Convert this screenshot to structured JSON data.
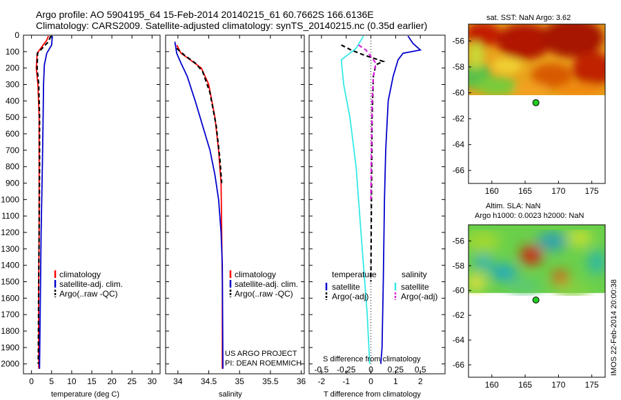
{
  "title": {
    "line1": "Argo profile: AO 5904195_64 15-Feb-2014 20140215_61 60.7662S 166.6136E",
    "line2": "Climatology: CARS2009. Satellite-adjusted climatology: synTS_20140215.nc (0.35d earlier)"
  },
  "colors": {
    "climatology": "#ff0000",
    "satellite": "#0000cc",
    "argo": "#000000",
    "satellite_salinity": "#33e8e8",
    "argo_salinity": "#e020e0"
  },
  "depth_axis": {
    "ticks": [
      0,
      100,
      200,
      300,
      400,
      500,
      600,
      700,
      800,
      900,
      1000,
      1100,
      1200,
      1300,
      1400,
      1500,
      1600,
      1700,
      1800,
      1900,
      2000
    ],
    "range": [
      0,
      2060
    ],
    "reversed": true
  },
  "chart_data": [
    {
      "type": "line",
      "xlabel": "temperature (deg C)",
      "xticks": [
        0,
        5,
        10,
        15,
        20,
        25,
        30
      ],
      "xlim": [
        -2,
        32
      ],
      "legend": [
        "climatology",
        "satellite-adj. clim.",
        "Argo(..raw -QC)"
      ],
      "series": [
        {
          "name": "climatology",
          "style": "solid",
          "color": "#ff0000",
          "points": [
            [
              4.2,
              5
            ],
            [
              3.8,
              30
            ],
            [
              1.4,
              110
            ],
            [
              1.2,
              200
            ],
            [
              1.6,
              300
            ],
            [
              1.9,
              500
            ],
            [
              1.9,
              800
            ],
            [
              1.9,
              1200
            ],
            [
              1.8,
              1500
            ],
            [
              1.8,
              2030
            ]
          ]
        },
        {
          "name": "satellite-adj. clim.",
          "style": "solid",
          "color": "#0000cc",
          "points": [
            [
              5.2,
              5
            ],
            [
              5.0,
              60
            ],
            [
              3.8,
              110
            ],
            [
              3.2,
              180
            ],
            [
              3.0,
              300
            ],
            [
              2.9,
              500
            ],
            [
              2.7,
              800
            ],
            [
              2.4,
              1200
            ],
            [
              2.2,
              1600
            ],
            [
              2.0,
              2030
            ]
          ]
        },
        {
          "name": "Argo(..raw -QC)",
          "style": "dashed",
          "color": "#000000",
          "points": [
            [
              4.8,
              5
            ],
            [
              4.2,
              40
            ],
            [
              1.5,
              110
            ],
            [
              1.4,
              200
            ],
            [
              1.8,
              300
            ],
            [
              2.0,
              500
            ],
            [
              2.0,
              800
            ],
            [
              1.9,
              1200
            ],
            [
              1.8,
              1500
            ],
            [
              1.7,
              2000
            ]
          ]
        }
      ]
    },
    {
      "type": "line",
      "xlabel": "salinity",
      "xticks": [
        34,
        34.5,
        35,
        35.5,
        36
      ],
      "xticklabels": [
        "34",
        "34.5",
        "35",
        "35.5",
        "36"
      ],
      "xlim": [
        33.8,
        36.05
      ],
      "legend": [
        "climatology",
        "satellite-adj. clim.",
        "Argo(..raw -QC)"
      ],
      "annotation": [
        "US ARGO PROJECT",
        "PI: DEAN ROEMMICH"
      ],
      "series": [
        {
          "name": "climatology",
          "style": "solid",
          "color": "#ff0000",
          "points": [
            [
              33.98,
              60
            ],
            [
              34.05,
              110
            ],
            [
              34.2,
              150
            ],
            [
              34.38,
              200
            ],
            [
              34.5,
              300
            ],
            [
              34.6,
              500
            ],
            [
              34.66,
              700
            ],
            [
              34.7,
              900
            ],
            [
              34.71,
              1200
            ],
            [
              34.72,
              1500
            ],
            [
              34.72,
              2030
            ]
          ]
        },
        {
          "name": "satellite-adj. clim.",
          "style": "solid",
          "color": "#0000cc",
          "points": [
            [
              33.95,
              40
            ],
            [
              33.98,
              110
            ],
            [
              34.05,
              170
            ],
            [
              34.15,
              250
            ],
            [
              34.28,
              400
            ],
            [
              34.4,
              550
            ],
            [
              34.52,
              700
            ],
            [
              34.6,
              850
            ],
            [
              34.66,
              1000
            ],
            [
              34.7,
              1200
            ],
            [
              34.72,
              1400
            ],
            [
              34.73,
              2030
            ]
          ]
        },
        {
          "name": "Argo(..raw -QC)",
          "style": "dashed",
          "color": "#000000",
          "points": [
            [
              33.98,
              80
            ],
            [
              34.1,
              120
            ],
            [
              34.28,
              170
            ],
            [
              34.4,
              220
            ],
            [
              34.52,
              350
            ],
            [
              34.62,
              550
            ],
            [
              34.68,
              750
            ],
            [
              34.71,
              900
            ]
          ]
        }
      ]
    },
    {
      "type": "line",
      "xlabel": "T difference from climatology",
      "xticks": [
        -2,
        -1,
        0,
        1,
        2
      ],
      "xlim": [
        -2.5,
        3.0
      ],
      "top_axis_label": "S difference from climatology",
      "top_ticks": [
        -0.5,
        -0.25,
        0,
        0.25,
        0.5
      ],
      "top_ticklabels": [
        "-0.5",
        "-0.25",
        "0",
        "0.25",
        "0.5"
      ],
      "top_xlim": [
        -0.625,
        0.75
      ],
      "legend_titles": [
        "temperature",
        "salinity"
      ],
      "legend": [
        "satellite",
        "Argo(-adj)",
        "satellite",
        "Argo(-adj)"
      ],
      "series": [
        {
          "name": "satellite",
          "group": "temperature",
          "style": "solid",
          "color": "#0000cc",
          "points": [
            [
              1.5,
              5
            ],
            [
              1.7,
              50
            ],
            [
              2.0,
              90
            ],
            [
              1.3,
              110
            ],
            [
              1.1,
              150
            ],
            [
              0.9,
              250
            ],
            [
              0.7,
              400
            ],
            [
              0.6,
              700
            ],
            [
              0.55,
              1000
            ],
            [
              0.5,
              1500
            ],
            [
              0.45,
              1900
            ],
            [
              0.4,
              2000
            ]
          ]
        },
        {
          "name": "Argo(-adj)",
          "group": "temperature",
          "style": "dashed",
          "color": "#000000",
          "points": [
            [
              -1.2,
              60
            ],
            [
              -0.8,
              90
            ],
            [
              -0.3,
              120
            ],
            [
              0.5,
              160
            ],
            [
              0.2,
              180
            ],
            [
              0.1,
              250
            ],
            [
              0.05,
              500
            ],
            [
              0.02,
              1000
            ],
            [
              0.0,
              1500
            ]
          ]
        },
        {
          "name": "satellite",
          "group": "salinity",
          "style": "solid",
          "color": "#33e8e8",
          "points": [
            [
              -0.3,
              5
            ],
            [
              -0.6,
              80
            ],
            [
              -1.2,
              150
            ],
            [
              -1.1,
              300
            ],
            [
              -0.85,
              500
            ],
            [
              -0.6,
              800
            ],
            [
              -0.45,
              1100
            ],
            [
              -0.3,
              1400
            ],
            [
              -0.15,
              1700
            ],
            [
              -0.05,
              2000
            ]
          ]
        },
        {
          "name": "Argo(-adj)",
          "group": "salinity",
          "style": "dashed",
          "color": "#e020e0",
          "points": [
            [
              -0.5,
              60
            ],
            [
              -0.2,
              90
            ],
            [
              0.0,
              130
            ],
            [
              0.2,
              170
            ],
            [
              0.1,
              250
            ],
            [
              0.05,
              400
            ],
            [
              0.02,
              700
            ],
            [
              0.0,
              1000
            ]
          ]
        }
      ]
    },
    {
      "type": "heatmap",
      "title": "sat. SST: NaN Argo: 3.62",
      "xticks": [
        160,
        165,
        170,
        175
      ],
      "yticks": [
        -56,
        -58,
        -60,
        -62,
        -64,
        -66
      ],
      "xlim": [
        156.5,
        177
      ],
      "ylim": [
        -67,
        -54.7
      ],
      "data_extent_lat": [
        -60.2,
        -54.7
      ],
      "marker": {
        "lon": 166.6136,
        "lat": -60.7662
      }
    },
    {
      "type": "heatmap",
      "title": "Altim. SLA: NaN",
      "subtitle": "Argo h1000: 0.0023 h2000: NaN",
      "xticks": [
        160,
        165,
        170,
        175
      ],
      "yticks": [
        -56,
        -58,
        -60,
        -62,
        -64,
        -66
      ],
      "xlim": [
        156.5,
        177
      ],
      "ylim": [
        -67,
        -54.7
      ],
      "data_extent_lat": [
        -60.2,
        -54.7
      ],
      "marker": {
        "lon": 166.6136,
        "lat": -60.7662
      }
    }
  ],
  "footer": "IMOS 22-Feb-2014 20:00:38"
}
